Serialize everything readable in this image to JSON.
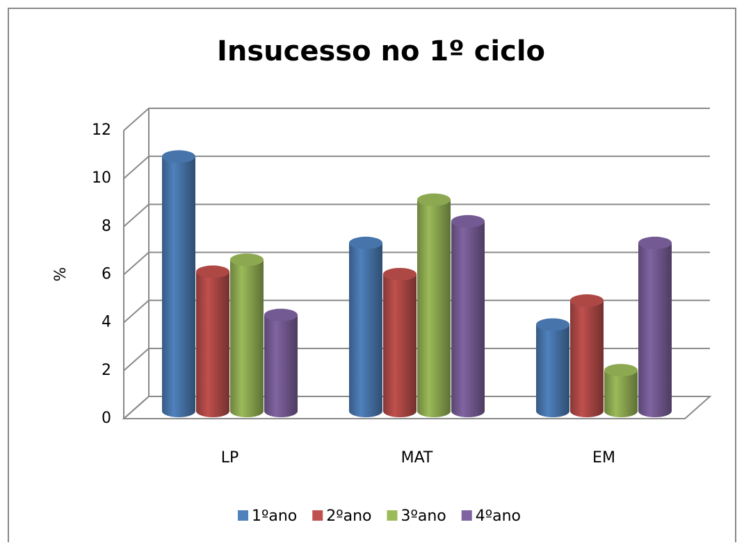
{
  "chart_data": {
    "type": "bar3d",
    "title": "Insucesso  no 1º ciclo",
    "y_label": "%",
    "categories": [
      "LP",
      "MAT",
      "EM"
    ],
    "series": [
      {
        "name": "1ºano",
        "color": "#4f81bd",
        "values": [
          10.6,
          7.0,
          3.6
        ]
      },
      {
        "name": "2ºano",
        "color": "#c0504d",
        "values": [
          5.8,
          5.7,
          4.6
        ]
      },
      {
        "name": "3ºano",
        "color": "#9bbb59",
        "values": [
          6.3,
          8.8,
          1.7
        ]
      },
      {
        "name": "4ºano",
        "color": "#8064a2",
        "values": [
          4.0,
          7.9,
          7.0
        ]
      }
    ],
    "ylim": [
      0,
      12
    ],
    "yticks": [
      0,
      2,
      4,
      6,
      8,
      10,
      12
    ],
    "grid": true,
    "legend": "bottom"
  }
}
